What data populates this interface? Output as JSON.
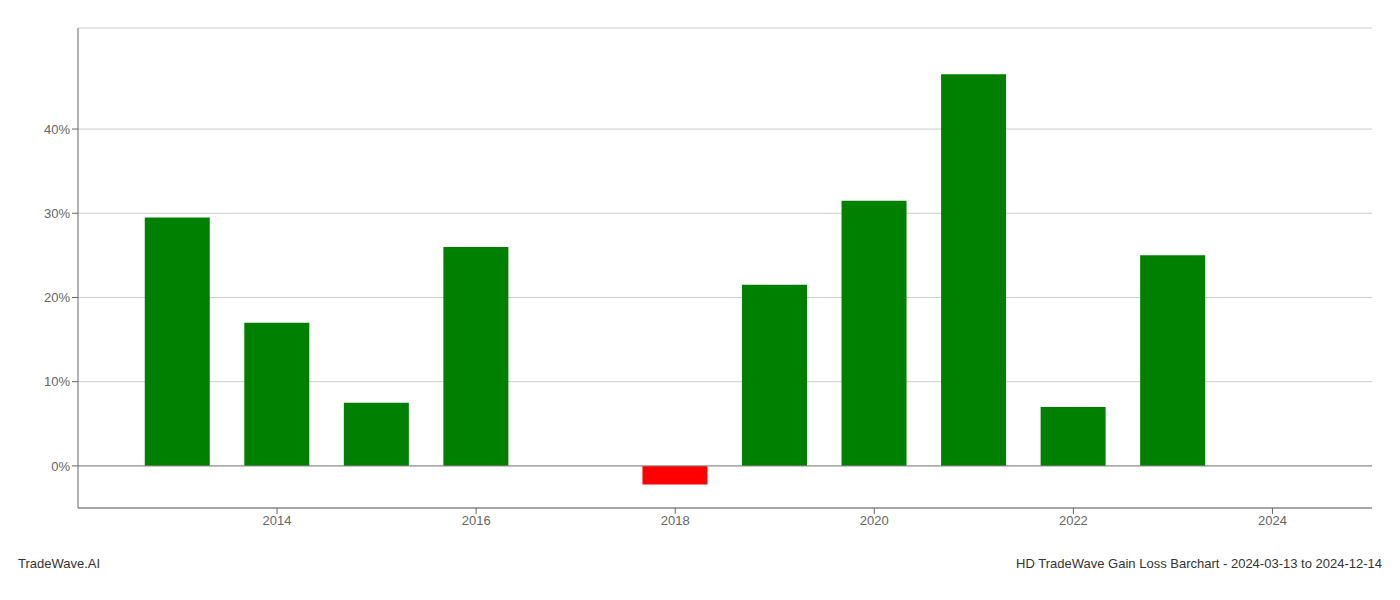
{
  "chart_data": {
    "type": "bar",
    "x": [
      2013,
      2014,
      2015,
      2016,
      2017,
      2018,
      2019,
      2020,
      2021,
      2022,
      2023
    ],
    "values": [
      29.5,
      17.0,
      7.5,
      26.0,
      null,
      -2.2,
      21.5,
      31.5,
      46.5,
      7.0,
      25.0
    ],
    "colors": [
      "#008000",
      "#008000",
      "#008000",
      "#008000",
      "#008000",
      "#ff0000",
      "#008000",
      "#008000",
      "#008000",
      "#008000",
      "#008000"
    ],
    "xlim": [
      2012,
      2025
    ],
    "xticks": [
      2014,
      2016,
      2018,
      2020,
      2022,
      2024
    ],
    "ylim": [
      -5,
      52
    ],
    "yticks": [
      {
        "value": 0,
        "label": "0%"
      },
      {
        "value": 10,
        "label": "10%"
      },
      {
        "value": 20,
        "label": "20%"
      },
      {
        "value": 30,
        "label": "30%"
      },
      {
        "value": 40,
        "label": "40%"
      }
    ],
    "grid": "y",
    "annotations": [
      "TradeWave.AI",
      "HD TradeWave Gain Loss Barchart - 2024-03-13 to 2024-12-14"
    ]
  }
}
